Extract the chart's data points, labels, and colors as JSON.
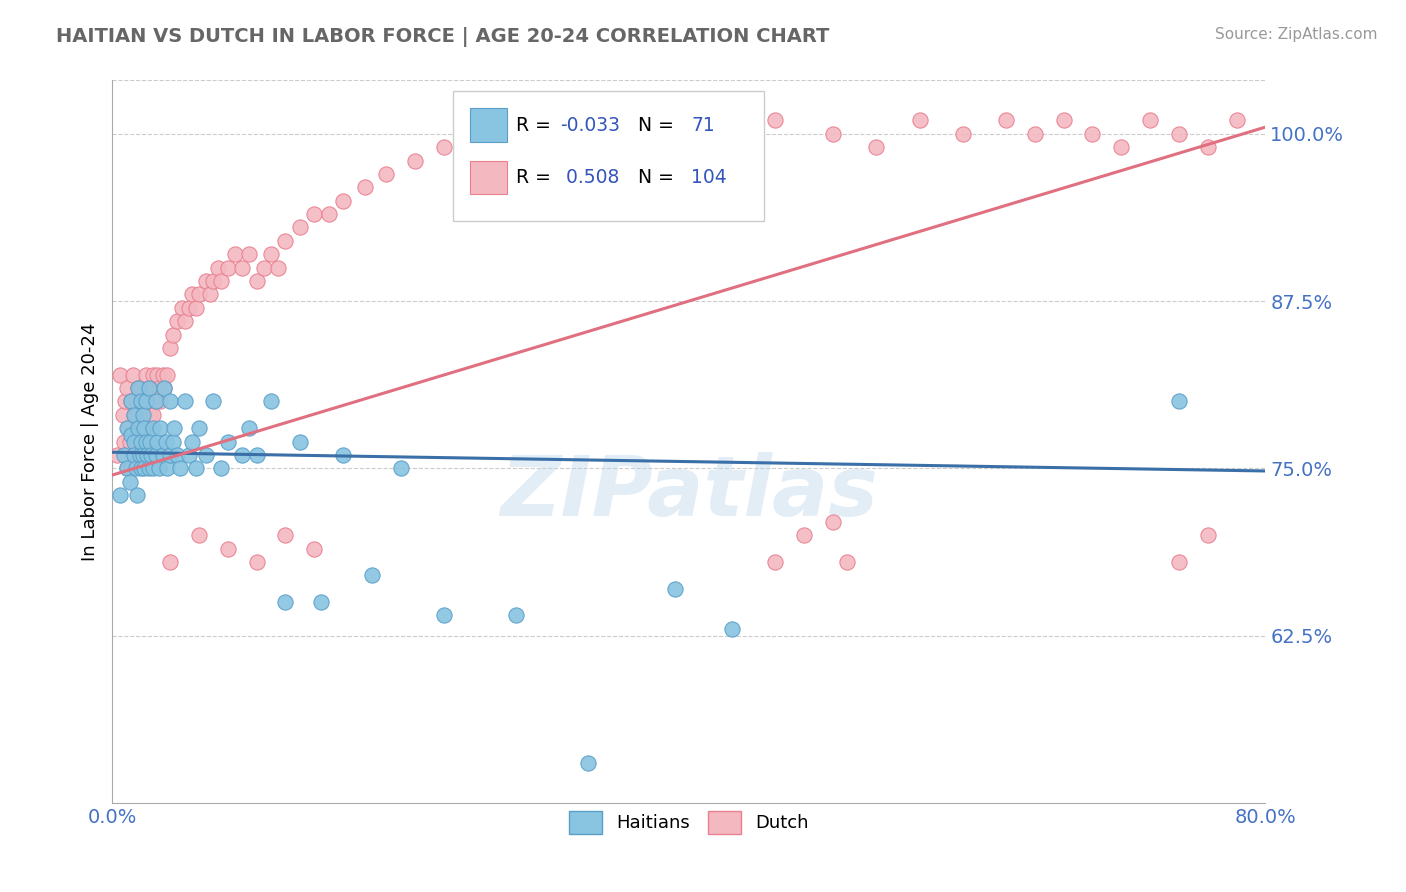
{
  "title": "HAITIAN VS DUTCH IN LABOR FORCE | AGE 20-24 CORRELATION CHART",
  "source_text": "Source: ZipAtlas.com",
  "ylabel": "In Labor Force | Age 20-24",
  "xlim": [
    0.0,
    0.8
  ],
  "ylim": [
    0.5,
    1.04
  ],
  "xtick_labels": [
    "0.0%",
    "",
    "",
    "",
    "80.0%"
  ],
  "xtick_vals": [
    0.0,
    0.2,
    0.4,
    0.6,
    0.8
  ],
  "ytick_labels": [
    "62.5%",
    "75.0%",
    "87.5%",
    "100.0%"
  ],
  "ytick_vals": [
    0.625,
    0.75,
    0.875,
    1.0
  ],
  "haitian_color": "#89c4e1",
  "haitian_edge": "#5a9fc9",
  "haitian_line_color": "#3a6fa8",
  "dutch_color": "#f4b8c1",
  "dutch_edge": "#e88090",
  "dutch_line_color": "#e07080",
  "R_haitian": -0.033,
  "N_haitian": 71,
  "R_dutch": 0.508,
  "N_dutch": 104,
  "watermark": "ZIPatlas",
  "haitian_trend_x0": 0.0,
  "haitian_trend_y0": 0.762,
  "haitian_trend_x1": 0.8,
  "haitian_trend_y1": 0.748,
  "dutch_trend_x0": 0.0,
  "dutch_trend_y0": 0.745,
  "dutch_trend_x1": 0.8,
  "dutch_trend_y1": 1.005,
  "haitian_scatter_x": [
    0.005,
    0.008,
    0.01,
    0.01,
    0.012,
    0.013,
    0.013,
    0.015,
    0.015,
    0.015,
    0.016,
    0.017,
    0.018,
    0.018,
    0.019,
    0.02,
    0.02,
    0.02,
    0.021,
    0.021,
    0.022,
    0.022,
    0.023,
    0.023,
    0.024,
    0.025,
    0.025,
    0.026,
    0.027,
    0.028,
    0.028,
    0.03,
    0.03,
    0.031,
    0.032,
    0.033,
    0.035,
    0.036,
    0.037,
    0.038,
    0.04,
    0.04,
    0.042,
    0.043,
    0.045,
    0.047,
    0.05,
    0.053,
    0.055,
    0.058,
    0.06,
    0.065,
    0.07,
    0.075,
    0.08,
    0.09,
    0.095,
    0.1,
    0.11,
    0.12,
    0.13,
    0.145,
    0.16,
    0.18,
    0.2,
    0.23,
    0.28,
    0.33,
    0.39,
    0.43,
    0.74
  ],
  "haitian_scatter_y": [
    0.73,
    0.76,
    0.75,
    0.78,
    0.74,
    0.775,
    0.8,
    0.77,
    0.79,
    0.76,
    0.75,
    0.73,
    0.81,
    0.78,
    0.76,
    0.75,
    0.77,
    0.8,
    0.79,
    0.76,
    0.78,
    0.75,
    0.77,
    0.8,
    0.76,
    0.75,
    0.81,
    0.77,
    0.76,
    0.75,
    0.78,
    0.8,
    0.76,
    0.77,
    0.75,
    0.78,
    0.76,
    0.81,
    0.77,
    0.75,
    0.76,
    0.8,
    0.77,
    0.78,
    0.76,
    0.75,
    0.8,
    0.76,
    0.77,
    0.75,
    0.78,
    0.76,
    0.8,
    0.75,
    0.77,
    0.76,
    0.78,
    0.76,
    0.8,
    0.65,
    0.77,
    0.65,
    0.76,
    0.67,
    0.75,
    0.64,
    0.64,
    0.53,
    0.66,
    0.63,
    0.8
  ],
  "dutch_scatter_x": [
    0.003,
    0.005,
    0.007,
    0.008,
    0.009,
    0.01,
    0.01,
    0.011,
    0.012,
    0.013,
    0.013,
    0.014,
    0.015,
    0.015,
    0.016,
    0.016,
    0.017,
    0.018,
    0.018,
    0.019,
    0.02,
    0.02,
    0.021,
    0.021,
    0.022,
    0.023,
    0.023,
    0.024,
    0.025,
    0.026,
    0.027,
    0.028,
    0.028,
    0.029,
    0.03,
    0.031,
    0.032,
    0.033,
    0.035,
    0.036,
    0.038,
    0.04,
    0.042,
    0.045,
    0.048,
    0.05,
    0.053,
    0.055,
    0.058,
    0.06,
    0.065,
    0.068,
    0.07,
    0.073,
    0.075,
    0.08,
    0.085,
    0.09,
    0.095,
    0.1,
    0.105,
    0.11,
    0.115,
    0.12,
    0.13,
    0.14,
    0.15,
    0.16,
    0.175,
    0.19,
    0.21,
    0.23,
    0.25,
    0.28,
    0.31,
    0.34,
    0.38,
    0.42,
    0.46,
    0.5,
    0.53,
    0.56,
    0.59,
    0.62,
    0.64,
    0.66,
    0.68,
    0.7,
    0.72,
    0.74,
    0.76,
    0.78,
    0.04,
    0.06,
    0.08,
    0.1,
    0.12,
    0.14,
    0.46,
    0.48,
    0.5,
    0.51,
    0.74,
    0.76
  ],
  "dutch_scatter_y": [
    0.76,
    0.82,
    0.79,
    0.77,
    0.8,
    0.75,
    0.81,
    0.78,
    0.77,
    0.8,
    0.75,
    0.82,
    0.79,
    0.76,
    0.8,
    0.77,
    0.79,
    0.76,
    0.81,
    0.78,
    0.81,
    0.77,
    0.8,
    0.76,
    0.79,
    0.82,
    0.78,
    0.8,
    0.81,
    0.79,
    0.8,
    0.82,
    0.79,
    0.81,
    0.8,
    0.82,
    0.81,
    0.8,
    0.82,
    0.81,
    0.82,
    0.84,
    0.85,
    0.86,
    0.87,
    0.86,
    0.87,
    0.88,
    0.87,
    0.88,
    0.89,
    0.88,
    0.89,
    0.9,
    0.89,
    0.9,
    0.91,
    0.9,
    0.91,
    0.89,
    0.9,
    0.91,
    0.9,
    0.92,
    0.93,
    0.94,
    0.94,
    0.95,
    0.96,
    0.97,
    0.98,
    0.99,
    0.98,
    1.0,
    0.99,
    0.99,
    1.0,
    1.0,
    1.01,
    1.0,
    0.99,
    1.01,
    1.0,
    1.01,
    1.0,
    1.01,
    1.0,
    0.99,
    1.01,
    1.0,
    0.99,
    1.01,
    0.68,
    0.7,
    0.69,
    0.68,
    0.7,
    0.69,
    0.68,
    0.7,
    0.71,
    0.68,
    0.68,
    0.7
  ]
}
